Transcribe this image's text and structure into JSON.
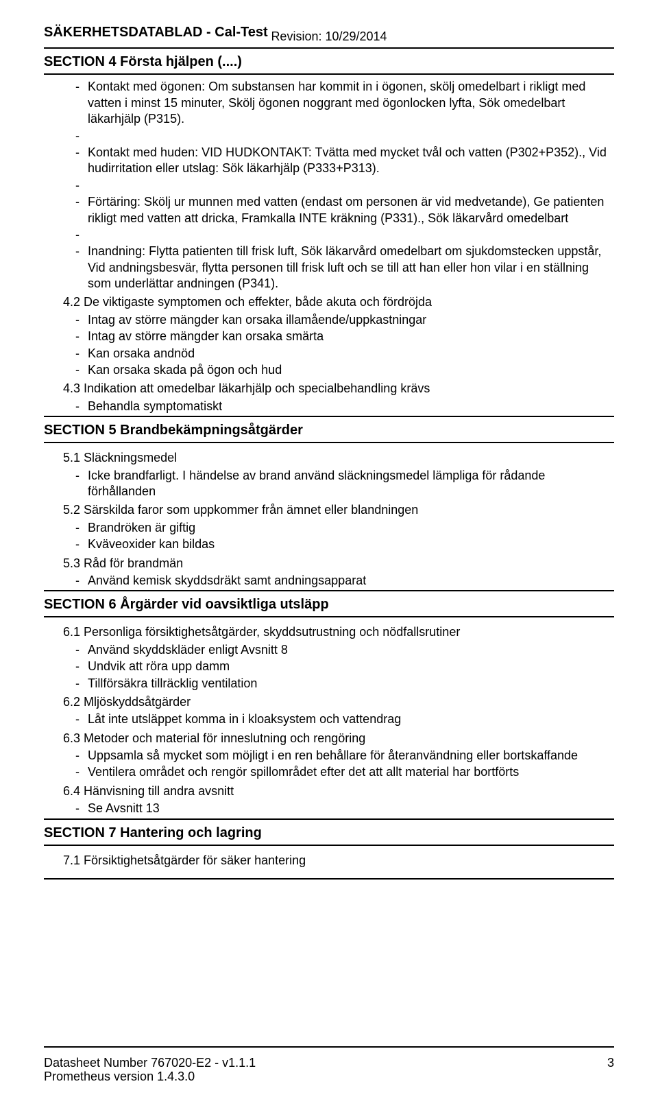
{
  "header": {
    "doc_title": "SÄKERHETSDATABLAD  -  Cal-Test",
    "revision": "Revision: 10/29/2014"
  },
  "section4": {
    "heading": "SECTION 4   Första hjälpen (....)",
    "eye_label": "Kontakt med ögonen:",
    "eye_body": " Om substansen har kommit in i ögonen, skölj omedelbart i rikligt med vatten i minst 15 minuter, Skölj ögonen noggrant med ögonlocken lyfta, Sök omedelbart läkarhjälp (P315).",
    "skin_label": "Kontakt med huden:",
    "skin_body": " VID HUDKONTAKT: Tvätta med mycket tvål och vatten (P302+P352)., Vid hudirritation eller utslag: Sök läkarhjälp (P333+P313).",
    "ingest_label": "Förtäring:",
    "ingest_body": " Skölj ur munnen med vatten (endast om personen är vid medvetande), Ge patienten rikligt med vatten att dricka, Framkalla INTE kräkning (P331)., Sök läkarvård omedelbart",
    "inhale_label": "Inandning:",
    "inhale_body": " Flytta patienten till frisk luft, Sök läkarvård omedelbart om sjukdomstecken uppstår, Vid andningsbesvär, flytta personen till frisk luft och se till att han eller hon vilar i en ställning som underlättar andningen (P341).",
    "s4_2": "4.2 De viktigaste symptomen och effekter, både akuta och fördröjda",
    "s4_2_items": [
      "Intag av större mängder kan orsaka illamående/uppkastningar",
      "Intag av större mängder kan orsaka smärta",
      "Kan orsaka andnöd",
      "Kan orsaka skada på ögon och hud"
    ],
    "s4_3": "4.3 Indikation att omedelbar läkarhjälp och specialbehandling krävs",
    "s4_3_items": [
      "Behandla symptomatiskt"
    ]
  },
  "section5": {
    "heading": "SECTION 5   Brandbekämpningsåtgärder",
    "s5_1": "5.1 Släckningsmedel",
    "s5_1_items": [
      "Icke brandfarligt. I händelse av brand använd släckningsmedel lämpliga för rådande förhållanden"
    ],
    "s5_2": "5.2 Särskilda faror som uppkommer från ämnet eller blandningen",
    "s5_2_items": [
      "Brandröken är giftig",
      "Kväveoxider kan bildas"
    ],
    "s5_3": "5.3 Råd för brandmän",
    "s5_3_items": [
      "Använd kemisk skyddsdräkt samt andningsapparat"
    ]
  },
  "section6": {
    "heading": "SECTION 6   Årgärder vid oavsiktliga utsläpp",
    "s6_1": "6.1 Personliga försiktighetsåtgärder, skyddsutrustning och nödfallsrutiner",
    "s6_1_items": [
      "Använd skyddskläder enligt Avsnitt 8",
      "Undvik att röra upp damm",
      " Tillförsäkra tillräcklig ventilation"
    ],
    "s6_2": "6.2 Mljöskyddsåtgärder",
    "s6_2_items": [
      "Låt inte utsläppet komma in i kloaksystem och vattendrag"
    ],
    "s6_3": "6.3 Metoder och material för inneslutning och rengöring",
    "s6_3_items": [
      "Uppsamla så mycket som möjligt i en ren behållare för återanvändning eller bortskaffande",
      "Ventilera området och rengör spillområdet efter det att allt material har bortförts"
    ],
    "s6_4": "6.4 Hänvisning till andra avsnitt",
    "s6_4_items": [
      " Se Avsnitt 13"
    ]
  },
  "section7": {
    "heading": "SECTION 7   Hantering och lagring",
    "s7_1": "7.1 Försiktighetsåtgärder för säker hantering"
  },
  "footer": {
    "line1": "Datasheet Number 767020-E2 - v1.1.1",
    "line2": "Prometheus version 1.4.3.0",
    "page": "3"
  }
}
